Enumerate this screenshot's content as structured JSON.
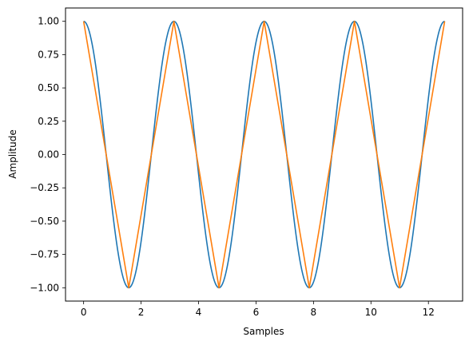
{
  "chart_data": {
    "type": "line",
    "title": "",
    "xlabel": "Samples",
    "ylabel": "Amplitude",
    "xlim": [
      -0.63,
      13.19
    ],
    "ylim": [
      -1.1,
      1.1
    ],
    "x_ticks": [
      "0",
      "2",
      "4",
      "6",
      "8",
      "10",
      "12"
    ],
    "y_ticks": [
      "−1.00",
      "−0.75",
      "−0.50",
      "−0.25",
      "0.00",
      "0.25",
      "0.50",
      "0.75",
      "1.00"
    ],
    "grid": false,
    "legend": "none",
    "series": [
      {
        "color": "#1f77b4",
        "x": [
          0,
          0.785,
          1.571,
          2.356,
          3.142,
          3.927,
          4.712,
          5.498,
          6.283,
          7.069,
          7.854,
          8.639,
          9.425,
          10.21,
          10.996,
          11.781,
          12.566
        ],
        "y": [
          1.0,
          0.0,
          -1.0,
          0.0,
          1.0,
          0.0,
          -1.0,
          0.0,
          1.0,
          0.0,
          -1.0,
          0.0,
          1.0,
          0.0,
          -1.0,
          0.0,
          1.0
        ]
      },
      {
        "color": "#ff7f0e",
        "x": [
          0,
          1.571,
          3.142,
          4.712,
          6.283,
          7.854,
          9.425,
          10.996,
          12.566
        ],
        "y": [
          1.0,
          -1.0,
          1.0,
          -1.0,
          1.0,
          -1.0,
          1.0,
          -1.0,
          1.0
        ]
      }
    ]
  }
}
